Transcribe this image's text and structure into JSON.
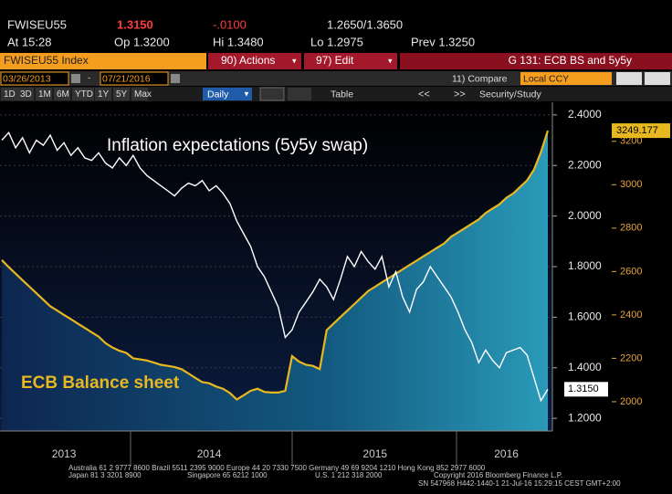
{
  "header": {
    "ticker": "FWISEU55",
    "last": "1.3150",
    "change": "-.0100",
    "range": "1.2650/1.3650",
    "time": "At 15:28",
    "open": "Op 1.3200",
    "high": "Hi 1.3480",
    "low": "Lo 1.2975",
    "prev": "Prev 1.3250"
  },
  "toolbar": {
    "security": "FWISEU55 Index",
    "actions": "90) Actions",
    "edit": "97) Edit",
    "page": "G 131: ECB BS and 5y5y",
    "start": "03/26/2013",
    "end": "07/21/2016",
    "compare": "11) Compare",
    "currency": "Local CCY",
    "study": "Security/Study",
    "periods": [
      "1D",
      "3D",
      "1M",
      "6M",
      "YTD",
      "1Y",
      "5Y",
      "Max"
    ],
    "frequency": "Daily",
    "table": "Table"
  },
  "footer": {
    "line1": "Australia 61 2 9777 8600 Brazil 5511 2395 9000 Europe 44 20 7330 7500 Germany 49 69 9204 1210 Hong Kong 852 2977 6000",
    "japan": "Japan 81 3 3201 8900",
    "singapore": "Singapore 65 6212 1000",
    "us": "U.S. 1 212 318 2000",
    "copyright": "Copyright 2016 Bloomberg Finance L.P.",
    "line3": "SN 547968 H442-1440-1 21-Jul-16 15:29:15 CEST GMT+2:00"
  },
  "chart_data": {
    "type": "line",
    "categories": [
      null,
      null,
      null,
      null,
      null,
      null,
      null,
      null,
      null,
      "2013",
      null,
      null,
      null,
      null,
      null,
      null,
      null,
      null,
      null,
      null,
      null,
      null,
      null,
      null,
      null,
      null,
      null,
      null,
      null,
      null,
      "2014",
      null,
      null,
      null,
      null,
      null,
      null,
      null,
      null,
      null,
      null,
      null,
      null,
      null,
      null,
      null,
      null,
      null,
      null,
      null,
      null,
      null,
      null,
      null,
      "2015",
      null,
      null,
      null,
      null,
      null,
      null,
      null,
      null,
      null,
      null,
      null,
      null,
      null,
      null,
      null,
      null,
      null,
      null,
      "2016",
      null,
      null,
      null,
      null,
      null,
      null
    ],
    "series": [
      {
        "name": "Inflation expectations (5y5y swap)",
        "color": "#ffffff",
        "values": [
          2.3,
          2.33,
          2.27,
          2.31,
          2.25,
          2.3,
          2.28,
          2.32,
          2.26,
          2.29,
          2.24,
          2.27,
          2.23,
          2.22,
          2.25,
          2.21,
          2.19,
          2.23,
          2.2,
          2.24,
          2.19,
          2.16,
          2.14,
          2.12,
          2.1,
          2.08,
          2.11,
          2.13,
          2.12,
          2.14,
          2.1,
          2.12,
          2.09,
          2.05,
          1.98,
          1.93,
          1.88,
          1.8,
          1.76,
          1.7,
          1.64,
          1.52,
          1.55,
          1.62,
          1.66,
          1.7,
          1.75,
          1.72,
          1.67,
          1.75,
          1.84,
          1.8,
          1.86,
          1.82,
          1.79,
          1.84,
          1.72,
          1.78,
          1.68,
          1.62,
          1.71,
          1.74,
          1.8,
          1.76,
          1.72,
          1.68,
          1.62,
          1.55,
          1.5,
          1.42,
          1.47,
          1.43,
          1.4,
          1.46,
          1.47,
          1.48,
          1.45,
          1.36,
          1.27,
          1.315
        ],
        "value_labels": [
          null,
          null,
          null,
          null,
          null,
          null,
          null,
          null,
          null,
          null,
          null,
          null,
          null,
          null,
          null,
          null,
          null,
          null,
          null,
          null,
          null,
          null,
          null,
          null,
          null,
          null,
          null,
          null,
          null,
          null,
          null,
          null,
          null,
          null,
          null,
          null,
          null,
          null,
          null,
          null,
          null,
          null,
          null,
          null,
          null,
          null,
          null,
          null,
          null,
          null,
          null,
          null,
          null,
          null,
          null,
          null,
          null,
          null,
          null,
          null,
          null,
          null,
          null,
          null,
          null,
          null,
          null,
          null,
          null,
          null,
          null,
          null,
          null,
          null,
          null,
          null,
          null,
          null,
          null,
          "1.3150"
        ]
      },
      {
        "name": "ECB Balance sheet",
        "color": "#e8b820",
        "axis": "y2",
        "values": [
          2653,
          2620,
          2590,
          2560,
          2530,
          2500,
          2470,
          2440,
          2420,
          2400,
          2380,
          2360,
          2340,
          2320,
          2300,
          2270,
          2250,
          2235,
          2225,
          2200,
          2195,
          2190,
          2180,
          2170,
          2165,
          2160,
          2150,
          2130,
          2110,
          2090,
          2085,
          2070,
          2060,
          2040,
          2010,
          2030,
          2050,
          2060,
          2045,
          2042,
          2042,
          2050,
          2210,
          2185,
          2170,
          2165,
          2150,
          2330,
          2360,
          2390,
          2420,
          2450,
          2480,
          2510,
          2530,
          2550,
          2570,
          2590,
          2610,
          2630,
          2650,
          2670,
          2690,
          2710,
          2730,
          2760,
          2780,
          2800,
          2820,
          2840,
          2870,
          2890,
          2910,
          2940,
          2960,
          2990,
          3020,
          3070,
          3150,
          3249.177
        ]
      }
    ],
    "ylim": [
      1.15,
      2.45
    ],
    "yticks": [
      {
        "value": 1.2,
        "label": "1.2000"
      },
      {
        "value": 1.4,
        "label": "1.4000"
      },
      {
        "value": 1.6,
        "label": "1.6000"
      },
      {
        "value": 1.8,
        "label": "1.8000"
      },
      {
        "value": 2.0,
        "label": "2.0000"
      },
      {
        "value": 2.2,
        "label": "2.2000"
      },
      {
        "value": 2.4,
        "label": "2.4000"
      }
    ],
    "y2lim": [
      1865,
      3380
    ],
    "y2ticks": [
      2000,
      2200,
      2400,
      2600,
      2800,
      3000,
      3200
    ],
    "grid": true
  }
}
